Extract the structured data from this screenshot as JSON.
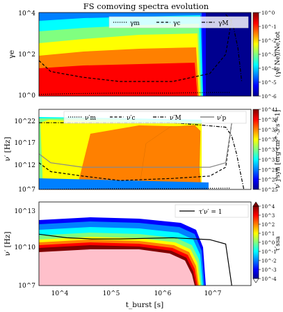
{
  "title": "FS comoving spectra evolution",
  "colors": {
    "ramp": [
      "#00008f",
      "#0000ff",
      "#0080ff",
      "#00ffff",
      "#80ff80",
      "#ffff00",
      "#ff8000",
      "#ff0000",
      "#800000"
    ],
    "pink": "#ffc0cb",
    "guide": "#888888"
  },
  "chart_data": [
    {
      "type": "heatmap",
      "panel": "top",
      "ylabel": "γe",
      "yticks": [
        "10^0",
        "10^2",
        "10^4"
      ],
      "ylim": [
        1,
        10000
      ],
      "yscale": "log",
      "legend": {
        "placement": "top-right",
        "entries": [
          "γm",
          "γc",
          "γM"
        ]
      },
      "colorbar": {
        "label": "(γe Ne)/Ne,tot",
        "ticks": [
          "10^0",
          "10^-1",
          "10^-2",
          "10^-3",
          "10^-4",
          "10^-5",
          "10^-6"
        ],
        "range": [
          1e-06,
          1
        ],
        "scale": "log"
      },
      "series": [
        {
          "name": "γm",
          "style": "dotted",
          "x": [
            3000,
            10000,
            100000,
            1000000,
            6000000,
            12000000
          ],
          "y": [
            1.2,
            1.3,
            1.4,
            1.4,
            1.5,
            1.5
          ]
        },
        {
          "name": "γc",
          "style": "dashed",
          "x": [
            3000,
            5000,
            20000,
            100000,
            1000000,
            5000000,
            10000000,
            13000000
          ],
          "y": [
            50,
            15,
            8,
            5,
            5,
            12,
            100,
            5000
          ]
        },
        {
          "name": "γM",
          "style": "dash-dot",
          "x": [
            10000000,
            12000000,
            14000000,
            17000000,
            20000000
          ],
          "y": [
            8000,
            5000,
            2000,
            200,
            5
          ]
        }
      ]
    },
    {
      "type": "heatmap",
      "panel": "middle",
      "ylabel": "ν′ [Hz]",
      "yticks": [
        "10^7",
        "10^12",
        "10^17",
        "10^22"
      ],
      "ylim": [
        10000000,
        10000000000000000000000000
      ],
      "yscale": "log",
      "legend": {
        "placement": "top",
        "entries": [
          "ν′m",
          "ν′c",
          "ν′M",
          "ν′p"
        ]
      },
      "colorbar": {
        "label": "ν′ j′syn [erg cm^-3 s^-1]",
        "ticks": [
          "10^41",
          "10^39",
          "10^37",
          "10^35",
          "10^33",
          "10^31",
          "10^29",
          "10^27",
          "10^25"
        ],
        "range": [
          1e+25,
          1e+41
        ],
        "scale": "log"
      },
      "series": [
        {
          "name": "ν′m",
          "style": "dotted",
          "x": [
            3000,
            10000,
            100000,
            1000000,
            5000000,
            12000000
          ],
          "y": [
            10000000,
            12000000,
            15000000,
            15000000,
            18000000,
            20000000
          ]
        },
        {
          "name": "ν′c",
          "style": "dashed",
          "x": [
            3000,
            5000,
            20000,
            100000,
            1000000,
            5000000,
            10000000,
            13000000
          ],
          "y": [
            10000000000000.0,
            100000000000.0,
            10000000000.0,
            1000000000,
            3000000000,
            10000000000,
            1000000000000.0,
            1e+22
          ]
        },
        {
          "name": "ν′M",
          "style": "dash-dot",
          "x": [
            3000,
            1000000,
            10000000,
            13000000,
            16000000,
            22000000
          ],
          "y": [
            1e+22,
            1e+22,
            1e+21,
            1e+19,
            1000000000000000.0,
            10000000
          ]
        },
        {
          "name": "ν′p",
          "style": "solid-gray",
          "x": [
            3000,
            5000,
            20000,
            100000,
            1000000,
            5000000,
            10000000,
            13000000
          ],
          "y": [
            1000000000000000.0,
            10000000000000.0,
            1000000000000.0,
            1000000000000.0,
            1000000000000.0,
            1000000000000.0,
            10000000000000.0,
            1e+22
          ]
        }
      ]
    },
    {
      "type": "heatmap",
      "panel": "bottom",
      "xlabel": "t_burst [s]",
      "ylabel": "ν′ [Hz]",
      "xticks": [
        "10^4",
        "10^5",
        "10^6",
        "10^7"
      ],
      "xlim": [
        3000,
        30000000
      ],
      "xscale": "log",
      "yticks": [
        "10^7",
        "10^10",
        "10^13"
      ],
      "ylim": [
        10000000,
        100000000000000
      ],
      "yscale": "log",
      "legend": {
        "placement": "top-right",
        "entries": [
          "τ′ν′ = 1"
        ]
      },
      "colorbar": {
        "label": "τ′ssa",
        "ticks": [
          "10^4",
          "10^3",
          "10^2",
          "10^1",
          "10^0",
          "10^-1",
          "10^-2",
          "10^-3",
          "10^-4"
        ],
        "range": [
          0.0001,
          10000
        ],
        "scale": "log"
      },
      "series": [
        {
          "name": "τ′ν′ = 1",
          "style": "solid",
          "x": [
            3000,
            10000,
            30000,
            100000,
            1000000,
            5000000,
            10000000,
            13000000
          ],
          "y": [
            200000000000,
            100000000000,
            80000000000,
            80000000000,
            100000000000,
            70000000000,
            30000000000,
            10000000
          ]
        }
      ]
    }
  ]
}
